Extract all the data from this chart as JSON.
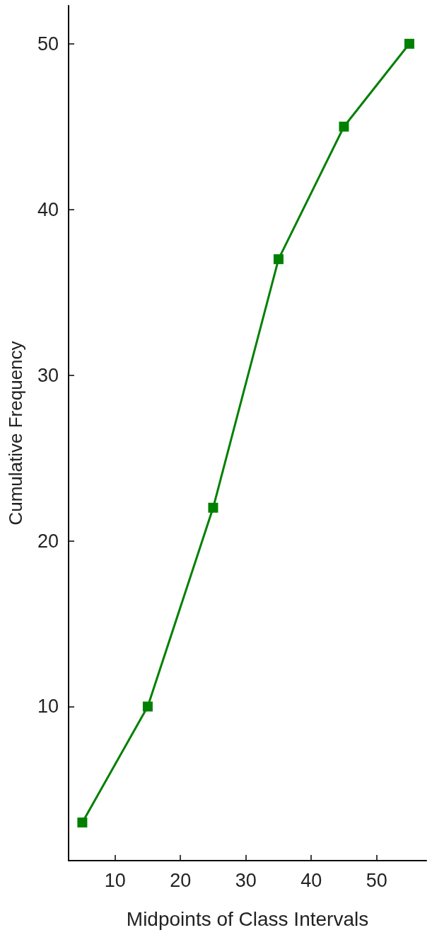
{
  "chart_data": {
    "type": "line",
    "xlabel": "Midpoints of Class Intervals",
    "ylabel": "Cumulative Frequency",
    "x": [
      5,
      15,
      25,
      35,
      45,
      55
    ],
    "series": [
      {
        "color": "#008000",
        "values": [
          3,
          10,
          22,
          37,
          45,
          50
        ]
      }
    ],
    "xlim": [
      2.9,
      57.6
    ],
    "xticks": [
      10,
      20,
      30,
      40,
      50
    ],
    "ylim": [
      0.7,
      52.3
    ],
    "yticks": [
      10,
      20,
      30,
      40,
      50
    ],
    "marker": "square",
    "line_style": "solid",
    "grid": false
  }
}
